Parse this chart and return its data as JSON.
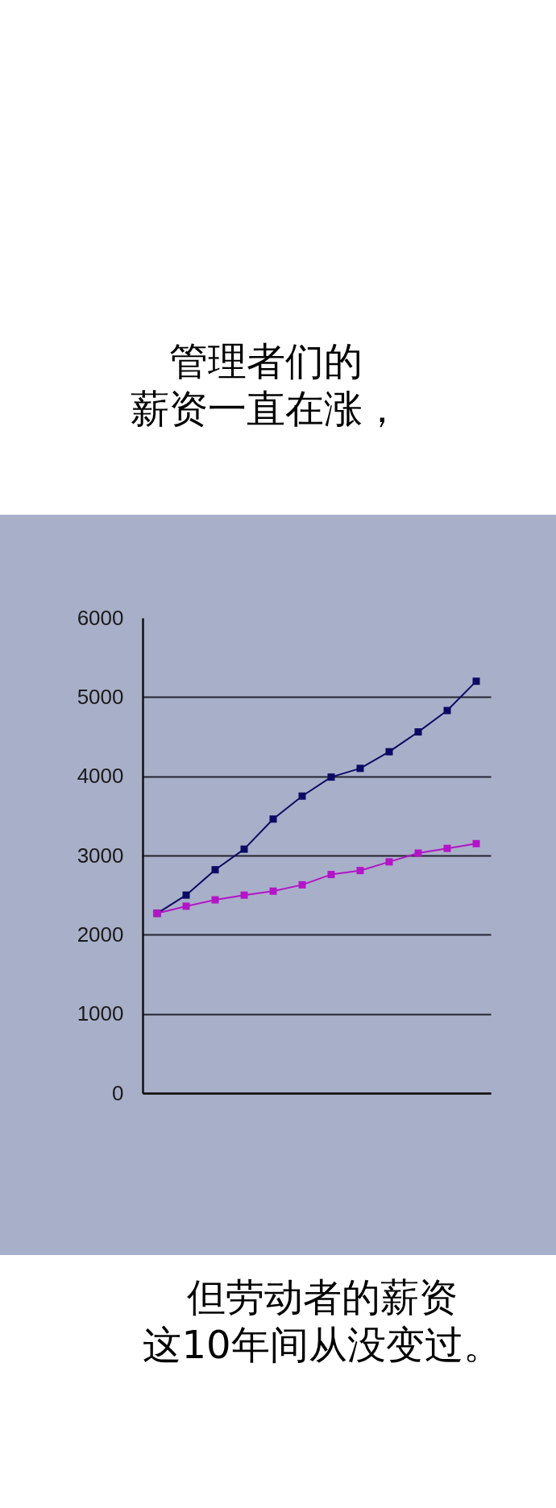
{
  "chart_data": {
    "type": "line",
    "annotations": [
      "管理者们的薪资一直在涨，",
      "但劳动者的薪资这10年间从没变过。"
    ],
    "categories": [
      null,
      null,
      null,
      null,
      null,
      null,
      null,
      null,
      null,
      null,
      null,
      null
    ],
    "series": [
      {
        "color": "#0b0b66",
        "values": [
          2270,
          2500,
          2820,
          3080,
          3460,
          3750,
          3990,
          4100,
          4310,
          4560,
          4830,
          5200
        ]
      },
      {
        "color": "#b414c8",
        "values": [
          2270,
          2360,
          2440,
          2500,
          2550,
          2630,
          2760,
          2810,
          2920,
          3030,
          3090,
          3150
        ]
      }
    ],
    "ylim": [
      0,
      6000
    ],
    "yticks": [
      0,
      1000,
      2000,
      3000,
      4000,
      5000,
      6000
    ],
    "grid": "y",
    "tick_labels": "y",
    "marker": "square",
    "line_style": "solid"
  }
}
